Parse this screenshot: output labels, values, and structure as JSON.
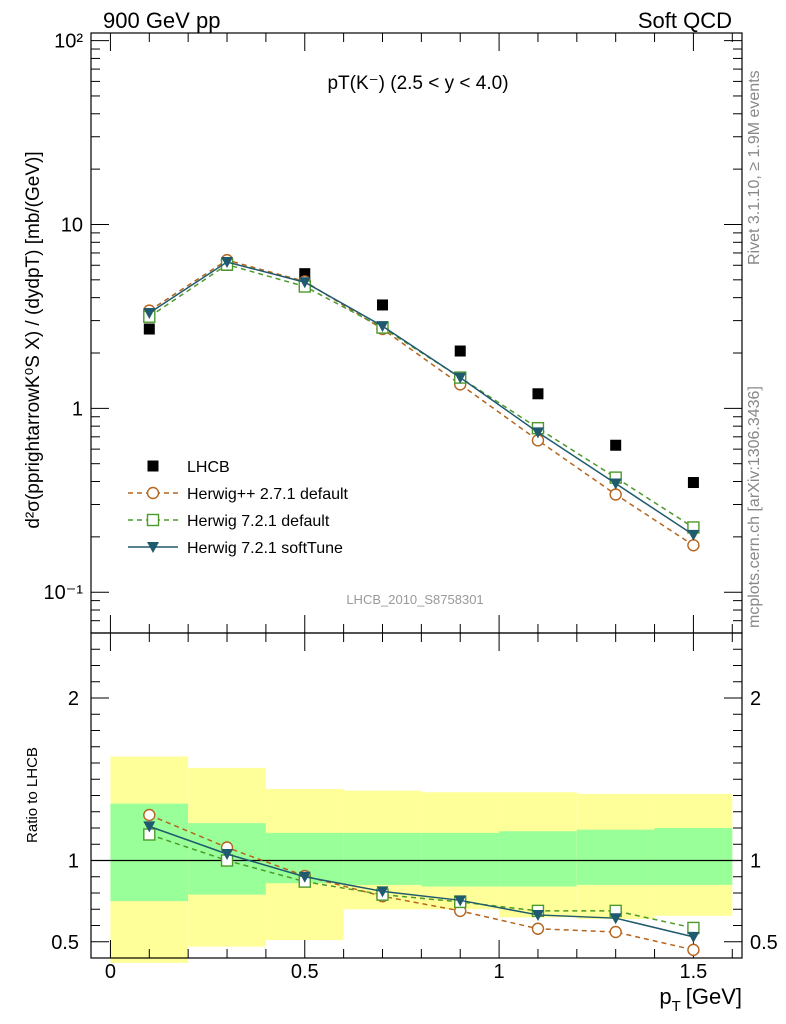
{
  "header": {
    "left": "900 GeV pp",
    "right": "Soft QCD"
  },
  "side_labels": {
    "rivet": "Rivet 3.1.10, ≥ 1.9M events",
    "mcplots": "mcplots.cern.ch [arXiv:1306.3436]"
  },
  "colors": {
    "lhcb": "#000000",
    "herwigpp": "#b5651d",
    "herwig721": "#4c9a2a",
    "softtune": "#1f5a6e",
    "band_yellow": "#ffff99",
    "band_green": "#99ff99",
    "watermark": "#999999"
  },
  "chart_data": [
    {
      "type": "scatter",
      "title": "pT(K⁻) (2.5 < y < 4.0)",
      "ylabel": "d²σ(pprightarrowK⁰S X) / (dydpT) [mb/(GeV)]",
      "watermark": "LHCB_2010_S8758301",
      "yscale": "log",
      "ylim": [
        0.06,
        110
      ],
      "xlim": [
        -0.05,
        1.625
      ],
      "yticks": [
        {
          "value": 0.1,
          "label": "10⁻¹"
        },
        {
          "value": 1,
          "label": "1"
        },
        {
          "value": 10,
          "label": "10"
        },
        {
          "value": 100,
          "label": "10²"
        }
      ],
      "legend_position": "bottom-left",
      "x": [
        0.1,
        0.3,
        0.5,
        0.7,
        0.9,
        1.1,
        1.3,
        1.5
      ],
      "series": [
        {
          "name": "LHCB",
          "marker": "square-filled",
          "line": "none",
          "values": [
            2.7,
            6.0,
            5.4,
            3.65,
            2.05,
            1.2,
            0.63,
            0.395
          ]
        },
        {
          "name": "Herwig++ 2.7.1 default",
          "marker": "circle-open",
          "line": "dashed",
          "values": [
            3.4,
            6.4,
            4.9,
            2.7,
            1.35,
            0.67,
            0.34,
            0.18
          ]
        },
        {
          "name": "Herwig 7.2.1 default",
          "marker": "square-open",
          "line": "dashed",
          "values": [
            3.15,
            6.05,
            4.6,
            2.75,
            1.47,
            0.78,
            0.42,
            0.225
          ]
        },
        {
          "name": "Herwig 7.2.1 softTune",
          "marker": "triangle-down-filled",
          "line": "solid",
          "values": [
            3.3,
            6.25,
            4.85,
            2.8,
            1.47,
            0.74,
            0.39,
            0.205
          ]
        }
      ]
    },
    {
      "type": "line",
      "ylabel": "Ratio to LHCB",
      "xlabel": "p_T [GeV]",
      "xlabel_main": "p",
      "xlabel_sub": "T",
      "xlabel_unit": "[GeV]",
      "ylim": [
        0.4,
        2.4
      ],
      "xlim": [
        -0.05,
        1.625
      ],
      "xticks": [
        {
          "value": 0,
          "label": "0"
        },
        {
          "value": 0.5,
          "label": "0.5"
        },
        {
          "value": 1,
          "label": "1"
        },
        {
          "value": 1.5,
          "label": "1.5"
        }
      ],
      "yticks": [
        {
          "value": 0.5,
          "label": "0.5"
        },
        {
          "value": 1,
          "label": "1"
        },
        {
          "value": 2,
          "label": "2"
        }
      ],
      "reference_line": 1,
      "bins": [
        [
          0,
          0.2
        ],
        [
          0.2,
          0.4
        ],
        [
          0.4,
          0.6
        ],
        [
          0.6,
          0.8
        ],
        [
          0.8,
          1.0
        ],
        [
          1.0,
          1.2
        ],
        [
          1.2,
          1.4
        ],
        [
          1.4,
          1.6
        ]
      ],
      "band_yellow": [
        [
          0.37,
          1.64
        ],
        [
          0.47,
          1.57
        ],
        [
          0.51,
          1.44
        ],
        [
          0.7,
          1.43
        ],
        [
          0.7,
          1.42
        ],
        [
          0.65,
          1.42
        ],
        [
          0.64,
          1.41
        ],
        [
          0.66,
          1.41
        ]
      ],
      "band_green": [
        [
          0.75,
          1.35
        ],
        [
          0.79,
          1.23
        ],
        [
          0.86,
          1.17
        ],
        [
          0.85,
          1.17
        ],
        [
          0.84,
          1.17
        ],
        [
          0.84,
          1.18
        ],
        [
          0.85,
          1.19
        ],
        [
          0.85,
          1.2
        ]
      ],
      "x": [
        0.1,
        0.3,
        0.5,
        0.7,
        0.9,
        1.1,
        1.3,
        1.5
      ],
      "series": [
        {
          "name": "Herwig++ 2.7.1 default",
          "values": [
            1.28,
            1.08,
            0.905,
            0.78,
            0.69,
            0.58,
            0.56,
            0.45
          ]
        },
        {
          "name": "Herwig 7.2.1 default",
          "values": [
            1.16,
            1.0,
            0.87,
            0.79,
            0.745,
            0.69,
            0.69,
            0.585
          ]
        },
        {
          "name": "Herwig 7.2.1 softTune",
          "values": [
            1.21,
            1.04,
            0.9,
            0.81,
            0.755,
            0.665,
            0.645,
            0.53
          ]
        }
      ]
    }
  ]
}
